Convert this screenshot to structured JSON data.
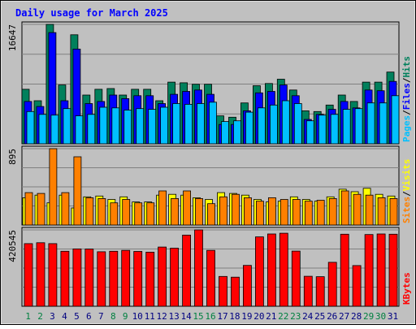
{
  "title": "Daily usage for March 2025",
  "colors": {
    "background": "#c0c0c0",
    "title": "#0000ff",
    "panel": "#c0c0c0",
    "grid": "#808080",
    "hits": "#00805c",
    "files": "#0000ff",
    "pages": "#00c0ff",
    "visits": "#ffff00",
    "sites": "#ff8000",
    "kbytes": "#ff0000",
    "weekday_label": "#000080",
    "weekend_label": "#008040"
  },
  "chart_data": {
    "type": "bar",
    "x": [
      1,
      2,
      3,
      4,
      5,
      6,
      7,
      8,
      9,
      10,
      11,
      12,
      13,
      14,
      15,
      16,
      17,
      18,
      19,
      20,
      21,
      22,
      23,
      24,
      25,
      26,
      27,
      28,
      29,
      30,
      31
    ],
    "weekend_days": [
      1,
      2,
      8,
      9,
      15,
      16,
      22,
      23,
      29,
      30
    ],
    "panels": [
      {
        "id": "traffic",
        "ymax": 16647,
        "tick_label": "16647",
        "legend": [
          "Pages",
          "/",
          "Files",
          "/",
          "Hits"
        ],
        "series": [
          {
            "name": "Hits",
            "values": [
              7600,
              6000,
              16647,
              8200,
              15200,
              6800,
              7600,
              7700,
              6800,
              7600,
              7600,
              6000,
              8600,
              8500,
              8300,
              8300,
              3900,
              3700,
              5700,
              8100,
              8400,
              9000,
              7500,
              4600,
              4500,
              5400,
              6800,
              5900,
              8600,
              8600,
              10000
            ]
          },
          {
            "name": "Files",
            "values": [
              5900,
              5200,
              15500,
              6000,
              13200,
              5600,
              5900,
              6800,
              6300,
              6700,
              6700,
              5600,
              6900,
              7300,
              7500,
              6900,
              2700,
              2700,
              4600,
              7100,
              7300,
              8200,
              6700,
              3400,
              4100,
              4800,
              5900,
              5000,
              7500,
              7400,
              8700
            ]
          },
          {
            "name": "Pages",
            "values": [
              4500,
              4100,
              4000,
              4900,
              3900,
              4100,
              5100,
              5000,
              4700,
              4900,
              4800,
              5100,
              5600,
              5500,
              5600,
              5800,
              3100,
              3200,
              4400,
              5000,
              5400,
              6000,
              5600,
              3200,
              4000,
              4100,
              4800,
              4900,
              5700,
              5700,
              6700
            ]
          }
        ]
      },
      {
        "id": "visitors",
        "ymax": 895,
        "tick_label": "895",
        "legend": [
          "Sites",
          "/",
          "Visits"
        ],
        "series": [
          {
            "name": "Visits",
            "values": [
              320,
              350,
              260,
              350,
              200,
              330,
              340,
              300,
              330,
              270,
              270,
              350,
              360,
              350,
              320,
              300,
              380,
              370,
              350,
              300,
              270,
              280,
              330,
              300,
              280,
              330,
              420,
              390,
              430,
              360,
              340
            ]
          },
          {
            "name": "Sites",
            "values": [
              380,
              370,
              895,
              380,
              800,
              320,
              310,
              260,
              300,
              260,
              260,
              400,
              310,
              400,
              310,
              250,
              330,
              360,
              320,
              280,
              320,
              300,
              300,
              280,
              290,
              310,
              400,
              360,
              350,
              320,
              310
            ]
          }
        ]
      },
      {
        "id": "kbytes",
        "ymax": 420545,
        "tick_label": "420545",
        "legend": [
          "KBytes"
        ],
        "series": [
          {
            "name": "KBytes",
            "values": [
              345000,
              350000,
              345000,
              303000,
              316000,
              315000,
              300000,
              303000,
              308000,
              302000,
              298000,
              326000,
              320000,
              392000,
              420545,
              308000,
              164000,
              160000,
              225000,
              382000,
              398000,
              402000,
              304000,
              165000,
              163000,
              242000,
              397000,
              224000,
              395000,
              398000,
              397000
            ]
          }
        ]
      }
    ]
  }
}
